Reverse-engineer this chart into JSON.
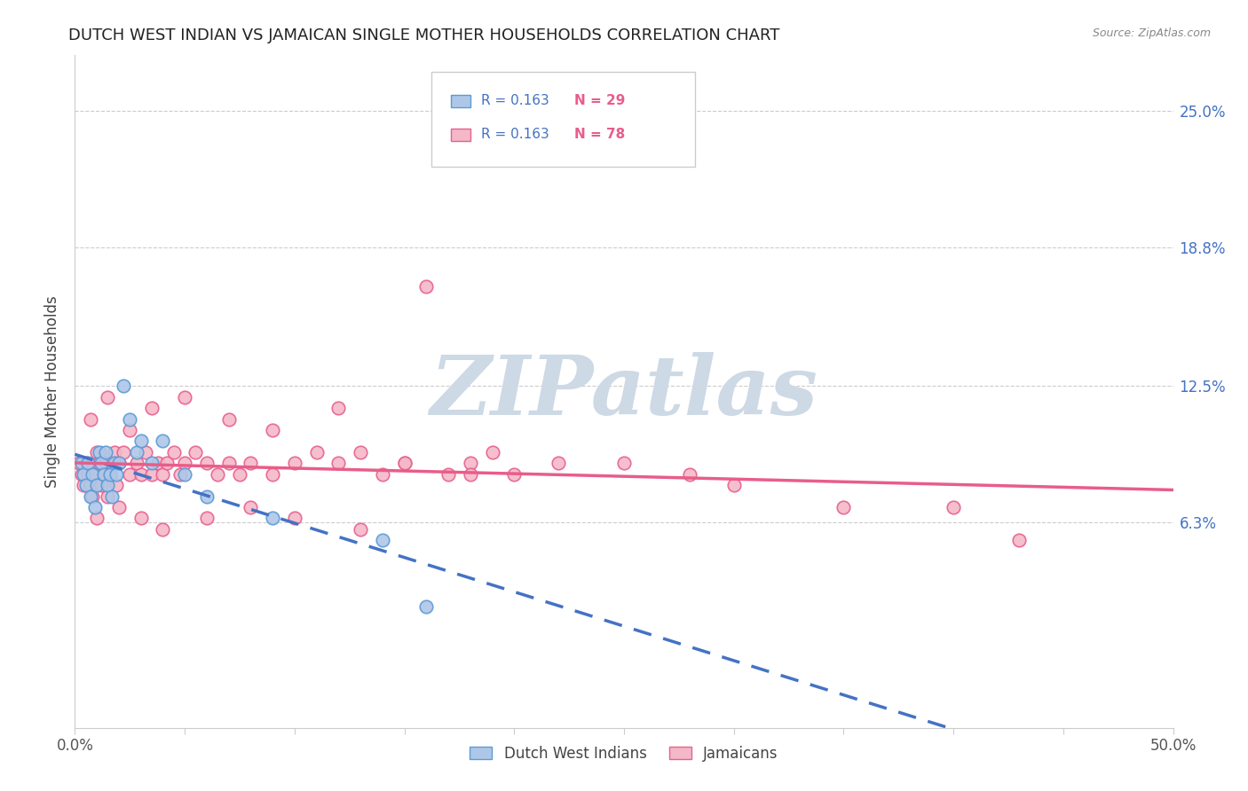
{
  "title": "DUTCH WEST INDIAN VS JAMAICAN SINGLE MOTHER HOUSEHOLDS CORRELATION CHART",
  "source": "Source: ZipAtlas.com",
  "ylabel": "Single Mother Households",
  "yticks": [
    0.0,
    0.063,
    0.125,
    0.188,
    0.25
  ],
  "ytick_labels": [
    "",
    "6.3%",
    "12.5%",
    "18.8%",
    "25.0%"
  ],
  "xmin": 0.0,
  "xmax": 0.5,
  "ymin": -0.03,
  "ymax": 0.275,
  "legend_r1": "R = 0.163",
  "legend_n1": "N = 29",
  "legend_r2": "R = 0.163",
  "legend_n2": "N = 78",
  "legend_label1": "Dutch West Indians",
  "legend_label2": "Jamaicans",
  "blue_fill": "#aec7e8",
  "blue_edge": "#5b9bd5",
  "pink_fill": "#f4b8c8",
  "pink_edge": "#e86090",
  "blue_line": "#4472c4",
  "pink_line": "#e85d8a",
  "r_color": "#4472c4",
  "n_color": "#e85d8a",
  "watermark": "ZIPatlas",
  "watermark_color": "#cdd9e5",
  "dutch_x": [
    0.003,
    0.004,
    0.005,
    0.006,
    0.007,
    0.008,
    0.009,
    0.01,
    0.011,
    0.012,
    0.013,
    0.014,
    0.015,
    0.016,
    0.017,
    0.018,
    0.019,
    0.02,
    0.022,
    0.025,
    0.028,
    0.03,
    0.035,
    0.04,
    0.05,
    0.06,
    0.09,
    0.14,
    0.16
  ],
  "dutch_y": [
    0.09,
    0.085,
    0.08,
    0.09,
    0.075,
    0.085,
    0.07,
    0.08,
    0.095,
    0.09,
    0.085,
    0.095,
    0.08,
    0.085,
    0.075,
    0.09,
    0.085,
    0.09,
    0.125,
    0.11,
    0.095,
    0.1,
    0.09,
    0.1,
    0.085,
    0.075,
    0.065,
    0.055,
    0.025
  ],
  "jamaican_x": [
    0.002,
    0.003,
    0.004,
    0.005,
    0.006,
    0.007,
    0.008,
    0.009,
    0.01,
    0.011,
    0.012,
    0.013,
    0.014,
    0.015,
    0.016,
    0.017,
    0.018,
    0.019,
    0.02,
    0.022,
    0.025,
    0.028,
    0.03,
    0.032,
    0.035,
    0.038,
    0.04,
    0.042,
    0.045,
    0.048,
    0.05,
    0.055,
    0.06,
    0.065,
    0.07,
    0.075,
    0.08,
    0.09,
    0.1,
    0.11,
    0.12,
    0.13,
    0.14,
    0.15,
    0.16,
    0.17,
    0.18,
    0.19,
    0.2,
    0.22,
    0.25,
    0.28,
    0.3,
    0.35,
    0.4,
    0.43,
    0.007,
    0.015,
    0.025,
    0.035,
    0.05,
    0.07,
    0.09,
    0.12,
    0.15,
    0.18,
    0.01,
    0.02,
    0.03,
    0.04,
    0.06,
    0.08,
    0.1,
    0.13
  ],
  "jamaican_y": [
    0.09,
    0.085,
    0.08,
    0.09,
    0.085,
    0.08,
    0.075,
    0.085,
    0.095,
    0.09,
    0.08,
    0.085,
    0.09,
    0.075,
    0.085,
    0.09,
    0.095,
    0.08,
    0.09,
    0.095,
    0.085,
    0.09,
    0.085,
    0.095,
    0.085,
    0.09,
    0.085,
    0.09,
    0.095,
    0.085,
    0.09,
    0.095,
    0.09,
    0.085,
    0.09,
    0.085,
    0.09,
    0.085,
    0.09,
    0.095,
    0.09,
    0.095,
    0.085,
    0.09,
    0.17,
    0.085,
    0.09,
    0.095,
    0.085,
    0.09,
    0.09,
    0.085,
    0.08,
    0.07,
    0.07,
    0.055,
    0.11,
    0.12,
    0.105,
    0.115,
    0.12,
    0.11,
    0.105,
    0.115,
    0.09,
    0.085,
    0.065,
    0.07,
    0.065,
    0.06,
    0.065,
    0.07,
    0.065,
    0.06
  ]
}
